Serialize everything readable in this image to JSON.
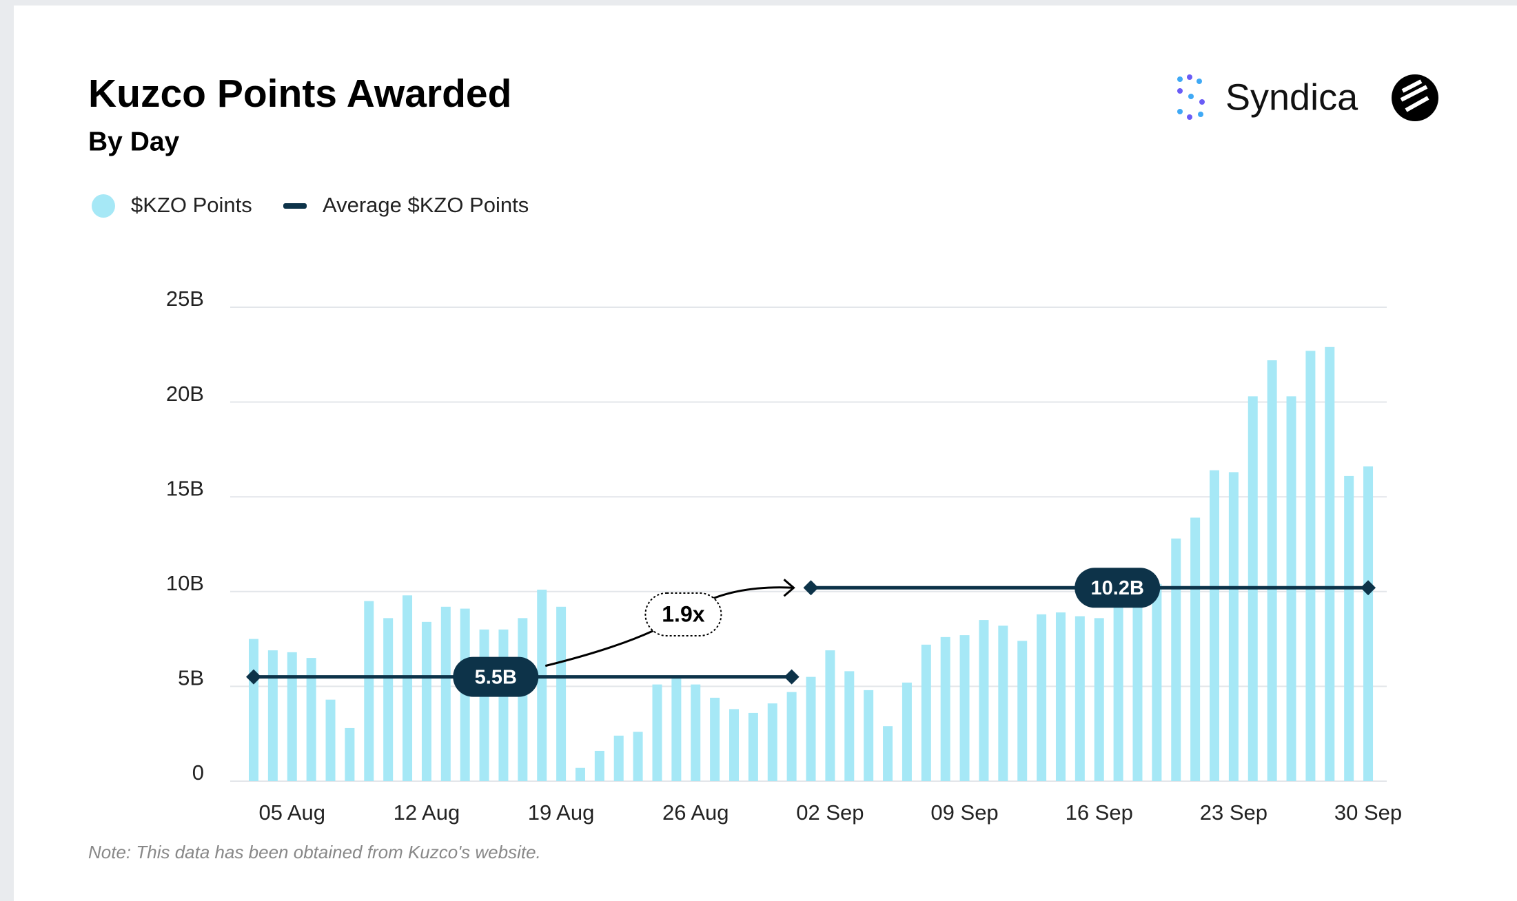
{
  "chart_data": {
    "type": "bar",
    "title": "Kuzco Points Awarded",
    "subtitle": "By Day",
    "brand": "Syndica",
    "note": "Note: This data has been obtained from Kuzco's website.",
    "categories": [
      null,
      null,
      "05 Aug",
      null,
      null,
      null,
      null,
      null,
      null,
      "12 Aug",
      null,
      null,
      null,
      null,
      null,
      null,
      "19 Aug",
      null,
      null,
      null,
      null,
      null,
      null,
      "26 Aug",
      null,
      null,
      null,
      null,
      null,
      null,
      "02 Sep",
      null,
      null,
      null,
      null,
      null,
      null,
      "09 Sep",
      null,
      null,
      null,
      null,
      null,
      null,
      "16 Sep",
      null,
      null,
      null,
      null,
      null,
      null,
      "23 Sep",
      null,
      null,
      null,
      null,
      null,
      null,
      "30 Sep"
    ],
    "series": [
      {
        "name": "$KZO Points",
        "color": "#a6e8f6",
        "values": [
          7.5,
          6.9,
          6.8,
          6.5,
          4.3,
          2.8,
          9.5,
          8.6,
          9.8,
          8.4,
          9.2,
          9.1,
          8.0,
          8.0,
          8.6,
          10.1,
          9.2,
          0.7,
          1.6,
          2.4,
          2.6,
          5.1,
          5.5,
          5.1,
          4.4,
          3.8,
          3.6,
          4.1,
          4.7,
          5.5,
          6.9,
          5.8,
          4.8,
          2.9,
          5.2,
          7.2,
          7.6,
          7.7,
          8.5,
          8.2,
          7.4,
          8.8,
          8.9,
          8.7,
          8.6,
          10.5,
          10.1,
          10.4,
          12.8,
          13.9,
          16.4,
          16.3,
          20.3,
          22.2,
          20.3,
          22.7,
          22.9,
          16.1,
          16.6
        ]
      },
      {
        "name": "Average $KZO Points",
        "color": "#0d3349",
        "values": [
          5.5,
          5.5,
          5.5,
          5.5,
          5.5,
          5.5,
          5.5,
          5.5,
          5.5,
          5.5,
          5.5,
          5.5,
          5.5,
          5.5,
          5.5,
          5.5,
          5.5,
          5.5,
          5.5,
          5.5,
          5.5,
          5.5,
          5.5,
          5.5,
          5.5,
          5.5,
          5.5,
          5.5,
          5.5,
          10.2,
          10.2,
          10.2,
          10.2,
          10.2,
          10.2,
          10.2,
          10.2,
          10.2,
          10.2,
          10.2,
          10.2,
          10.2,
          10.2,
          10.2,
          10.2,
          10.2,
          10.2,
          10.2,
          10.2,
          10.2,
          10.2,
          10.2,
          10.2,
          10.2,
          10.2,
          10.2,
          10.2,
          10.2,
          10.2
        ],
        "segment_labels": [
          "5.5B",
          "10.2B"
        ]
      }
    ],
    "annotation": "1.9x",
    "ylim": [
      0,
      25
    ],
    "yticks": [
      0,
      {
        "value": 5,
        "label": "5B"
      },
      {
        "value": 10,
        "label": "10B"
      },
      {
        "value": 15,
        "label": "15B"
      },
      {
        "value": 20,
        "label": "20B"
      },
      {
        "value": 25,
        "label": "25B"
      }
    ],
    "grid": true,
    "legend": "top-left"
  }
}
